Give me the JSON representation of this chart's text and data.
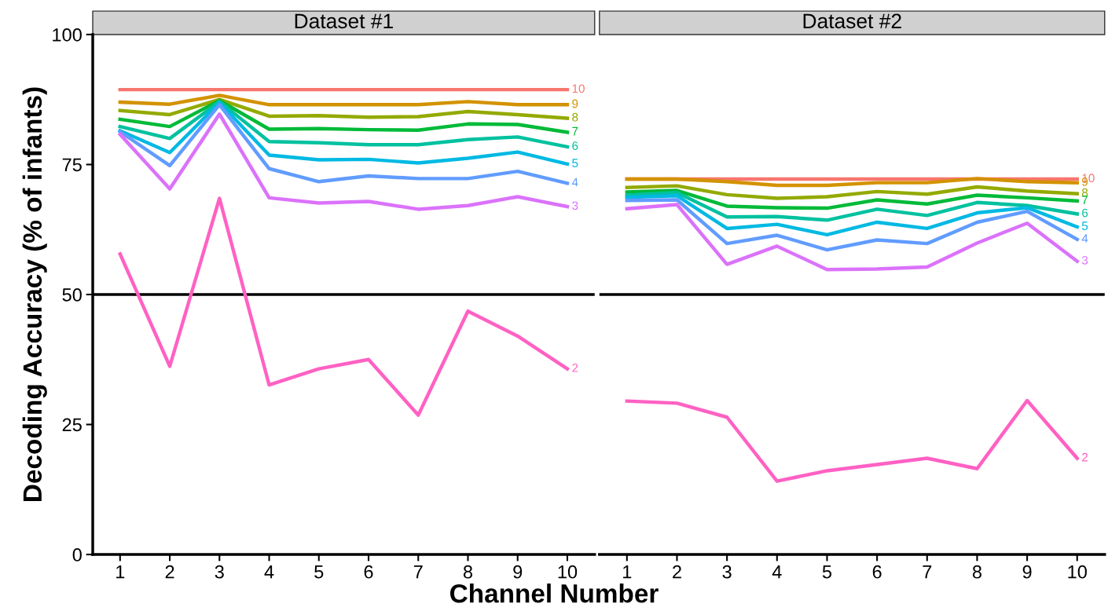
{
  "chart_data": [
    {
      "type": "line",
      "title": "Dataset #1",
      "xlabel": "Channel Number",
      "ylabel": "Decoding Accuracy (% of infants)",
      "x": [
        1,
        2,
        3,
        4,
        5,
        6,
        7,
        8,
        9,
        10
      ],
      "xlim": [
        0.45,
        10.55
      ],
      "xticks": [
        1,
        2,
        3,
        4,
        5,
        6,
        7,
        8,
        9,
        10
      ],
      "ylim": [
        0,
        100
      ],
      "yticks": [
        0,
        25,
        50,
        75,
        100
      ],
      "grid": false,
      "ref_lines": [
        {
          "axis": "y",
          "value": 50,
          "color": "#000000"
        }
      ],
      "series": [
        {
          "name": "10",
          "color": "#F8766D",
          "values": [
            89.4,
            89.4,
            89.4,
            89.4,
            89.4,
            89.4,
            89.4,
            89.4,
            89.4,
            89.4
          ]
        },
        {
          "name": "9",
          "color": "#D39200",
          "values": [
            87.0,
            86.6,
            88.3,
            86.5,
            86.5,
            86.5,
            86.5,
            87.1,
            86.5,
            86.5
          ]
        },
        {
          "name": "8",
          "color": "#93AA00",
          "values": [
            85.4,
            84.6,
            87.5,
            84.3,
            84.4,
            84.1,
            84.2,
            85.2,
            84.6,
            83.9
          ]
        },
        {
          "name": "7",
          "color": "#00BA38",
          "values": [
            83.7,
            82.3,
            87.3,
            81.8,
            81.9,
            81.7,
            81.6,
            82.8,
            82.7,
            81.2
          ]
        },
        {
          "name": "6",
          "color": "#00C19F",
          "values": [
            82.3,
            80.0,
            87.1,
            79.4,
            79.2,
            78.8,
            78.8,
            79.8,
            80.3,
            78.4
          ]
        },
        {
          "name": "5",
          "color": "#00B9E3",
          "values": [
            81.5,
            77.3,
            86.9,
            76.8,
            75.9,
            76.0,
            75.3,
            76.2,
            77.4,
            75.1
          ]
        },
        {
          "name": "4",
          "color": "#619CFF",
          "values": [
            81.3,
            74.8,
            86.5,
            74.2,
            71.7,
            72.8,
            72.3,
            72.3,
            73.7,
            71.4
          ]
        },
        {
          "name": "3",
          "color": "#DB72FB",
          "values": [
            80.8,
            70.3,
            84.7,
            68.6,
            67.6,
            67.9,
            66.4,
            67.1,
            68.8,
            66.9
          ]
        },
        {
          "name": "2",
          "color": "#FF61C3",
          "values": [
            57.8,
            36.2,
            68.5,
            32.6,
            35.7,
            37.5,
            26.8,
            46.8,
            42.0,
            35.7
          ]
        }
      ]
    },
    {
      "type": "line",
      "title": "Dataset #2",
      "x": [
        1,
        2,
        3,
        4,
        5,
        6,
        7,
        8,
        9,
        10
      ],
      "xlim": [
        0.45,
        10.55
      ],
      "xticks": [
        1,
        2,
        3,
        4,
        5,
        6,
        7,
        8,
        9,
        10
      ],
      "ylim": [
        0,
        100
      ],
      "yticks": [
        0,
        25,
        50,
        75,
        100
      ],
      "tick_labels": "x",
      "grid": false,
      "ref_lines": [
        {
          "axis": "y",
          "value": 50,
          "color": "#000000"
        }
      ],
      "series": [
        {
          "name": "10",
          "color": "#F8766D",
          "values": [
            72.2,
            72.2,
            72.2,
            72.2,
            72.2,
            72.2,
            72.2,
            72.2,
            72.2,
            72.2
          ]
        },
        {
          "name": "9",
          "color": "#D39200",
          "values": [
            72.2,
            72.2,
            71.7,
            71.0,
            71.0,
            71.5,
            71.5,
            72.3,
            71.7,
            71.5
          ]
        },
        {
          "name": "8",
          "color": "#93AA00",
          "values": [
            70.6,
            70.9,
            69.2,
            68.5,
            68.8,
            69.8,
            69.3,
            70.7,
            69.9,
            69.4
          ]
        },
        {
          "name": "7",
          "color": "#00BA38",
          "values": [
            69.7,
            70.0,
            67.0,
            66.7,
            66.6,
            68.2,
            67.4,
            69.1,
            68.6,
            68.0
          ]
        },
        {
          "name": "6",
          "color": "#00C19F",
          "values": [
            69.1,
            69.6,
            64.9,
            65.0,
            64.3,
            66.4,
            65.2,
            67.7,
            67.1,
            65.5
          ]
        },
        {
          "name": "5",
          "color": "#00B9E3",
          "values": [
            68.7,
            69.0,
            62.7,
            63.5,
            61.5,
            63.9,
            62.7,
            65.7,
            66.7,
            63.0
          ]
        },
        {
          "name": "4",
          "color": "#619CFF",
          "values": [
            68.1,
            68.2,
            59.8,
            61.4,
            58.6,
            60.5,
            59.8,
            63.9,
            66.0,
            60.6
          ]
        },
        {
          "name": "3",
          "color": "#DB72FB",
          "values": [
            66.5,
            67.3,
            55.8,
            59.3,
            54.8,
            54.9,
            55.3,
            59.9,
            63.7,
            56.4
          ]
        },
        {
          "name": "2",
          "color": "#FF61C3",
          "values": [
            29.5,
            29.1,
            26.4,
            14.1,
            16.1,
            17.3,
            18.5,
            16.5,
            29.6,
            18.5
          ]
        }
      ]
    }
  ]
}
